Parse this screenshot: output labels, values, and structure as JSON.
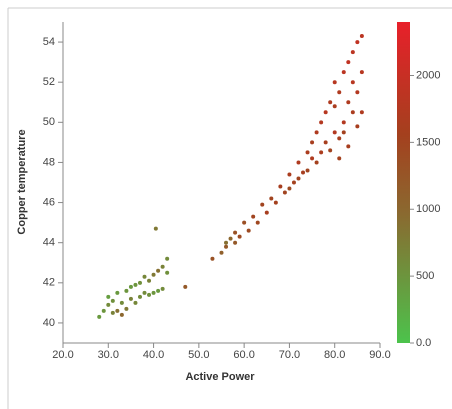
{
  "chart_data": {
    "type": "scatter",
    "xlabel": "Active Power",
    "ylabel": "Copper temperature",
    "xlim": [
      20,
      90
    ],
    "ylim": [
      39,
      55
    ],
    "xticks": [
      {
        "value": 20,
        "label": "20.0"
      },
      {
        "value": 30,
        "label": "30.0"
      },
      {
        "value": 40,
        "label": "40.0"
      },
      {
        "value": 50,
        "label": "50.0"
      },
      {
        "value": 60,
        "label": "60.0"
      },
      {
        "value": 70,
        "label": "70.0"
      },
      {
        "value": 80,
        "label": "80.0"
      },
      {
        "value": 90,
        "label": "90.0"
      }
    ],
    "yticks": [
      40,
      42,
      44,
      46,
      48,
      50,
      52,
      54
    ],
    "clim": [
      0,
      2400
    ],
    "cticks": [
      {
        "value": 0,
        "label": "0.0"
      },
      500,
      1000,
      1500,
      2000
    ],
    "colorscale": [
      [
        0,
        "#4cc34c"
      ],
      [
        0.4,
        "#8a6a30"
      ],
      [
        0.65,
        "#a4401e"
      ],
      [
        1,
        "#e8202a"
      ]
    ],
    "x": [
      28,
      29,
      30,
      30,
      31,
      31,
      32,
      32,
      33,
      33,
      34,
      34,
      35,
      35,
      36,
      36,
      37,
      37,
      38,
      38,
      39,
      39,
      40,
      40,
      41,
      41,
      42,
      42,
      43,
      43,
      40.5,
      47,
      53,
      55,
      56,
      56,
      57,
      58,
      58,
      59,
      60,
      61,
      62,
      63,
      64,
      65,
      66,
      67,
      68,
      69,
      70,
      70,
      71,
      72,
      72,
      73,
      74,
      74,
      75,
      75,
      76,
      76,
      77,
      77,
      78,
      78,
      79,
      79,
      80,
      80,
      80,
      81,
      81,
      82,
      82,
      82,
      83,
      83,
      84,
      84,
      84,
      85,
      85,
      85,
      86,
      86,
      86,
      83,
      81
    ],
    "y": [
      40.3,
      40.6,
      40.9,
      41.3,
      40.5,
      41.1,
      40.6,
      41.5,
      40.4,
      41.0,
      40.7,
      41.6,
      41.2,
      41.8,
      41.0,
      41.9,
      41.3,
      42.0,
      41.5,
      42.3,
      41.4,
      42.1,
      42.4,
      41.5,
      42.6,
      41.6,
      42.8,
      41.7,
      43.2,
      42.5,
      44.7,
      41.8,
      43.2,
      43.5,
      44.0,
      43.8,
      44.2,
      44.5,
      44.0,
      44.3,
      45.0,
      44.6,
      45.3,
      45.0,
      45.9,
      45.5,
      46.2,
      46.0,
      46.8,
      46.5,
      47.4,
      46.7,
      47.0,
      48.0,
      47.2,
      47.5,
      48.5,
      47.6,
      48.2,
      49.0,
      48.0,
      49.5,
      48.5,
      50.0,
      49.0,
      50.5,
      48.6,
      51.0,
      49.5,
      50.8,
      52.0,
      49.2,
      51.5,
      50.0,
      52.5,
      49.5,
      51.0,
      53.0,
      50.5,
      52.0,
      53.5,
      51.5,
      54.0,
      49.8,
      52.5,
      54.3,
      50.5,
      48.8,
      48.2
    ],
    "color_values": [
      450,
      500,
      600,
      400,
      700,
      550,
      900,
      450,
      1000,
      600,
      800,
      500,
      700,
      450,
      650,
      500,
      600,
      550,
      600,
      650,
      550,
      700,
      800,
      500,
      900,
      450,
      700,
      600,
      600,
      550,
      800,
      1200,
      1300,
      1100,
      900,
      1200,
      1000,
      1300,
      1200,
      1400,
      1350,
      1400,
      1500,
      1450,
      1500,
      1600,
      1500,
      1550,
      1600,
      1500,
      1650,
      1400,
      1550,
      1700,
      1500,
      1600,
      1650,
      1500,
      1700,
      1600,
      1550,
      1700,
      1650,
      1750,
      1600,
      1800,
      1500,
      1700,
      1750,
      1650,
      1800,
      1600,
      1700,
      1750,
      1850,
      1550,
      1700,
      1900,
      1650,
      1800,
      1850,
      1750,
      1900,
      1600,
      1800,
      1850,
      1700,
      1600,
      1550
    ]
  }
}
